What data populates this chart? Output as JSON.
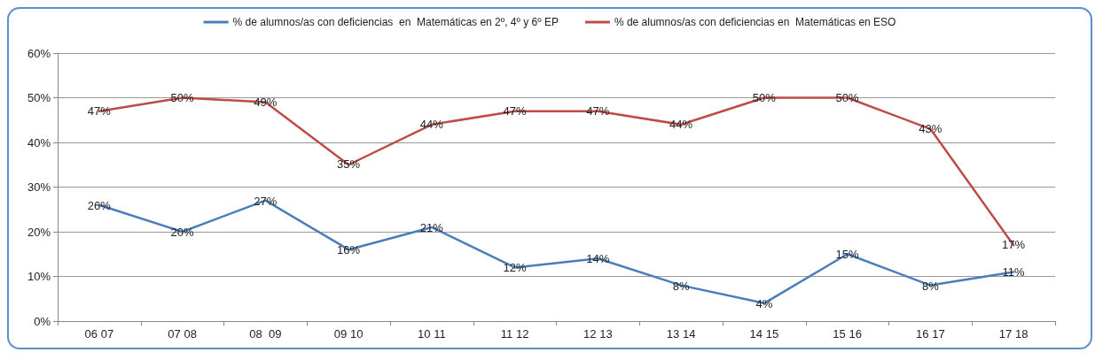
{
  "chart_data": {
    "type": "line",
    "categories": [
      "06 07",
      "07 08",
      "08  09",
      "09 10",
      "10 11",
      "11 12",
      "12 13",
      "13 14",
      "14 15",
      "15 16",
      "16 17",
      "17 18"
    ],
    "series": [
      {
        "name": "% de alumnos/as con deficiencias  en  Matemáticas en 2º, 4º y 6º EP",
        "color": "#4a7ebb",
        "values": [
          26,
          20,
          27,
          16,
          21,
          12,
          14,
          8,
          4,
          15,
          8,
          11
        ],
        "value_labels": [
          "26%",
          "20%",
          "27%",
          "16%",
          "21%",
          "12%",
          "14%",
          "8%",
          "4%",
          "15%",
          "8%",
          "11%"
        ]
      },
      {
        "name": "% de alumnos/as con deficiencias en  Matemáticas en ESO",
        "color": "#be4b48",
        "values": [
          47,
          50,
          49,
          35,
          44,
          47,
          47,
          44,
          50,
          50,
          43,
          17
        ],
        "value_labels": [
          "47%",
          "50%",
          "49%",
          "35%",
          "44%",
          "47%",
          "47%",
          "44%",
          "50%",
          "50%",
          "43%",
          "17%"
        ]
      }
    ],
    "ylim": [
      0,
      60
    ],
    "yticks": [
      {
        "value": 0,
        "label": "0%"
      },
      {
        "value": 10,
        "label": "10%"
      },
      {
        "value": 20,
        "label": "20%"
      },
      {
        "value": 30,
        "label": "30%"
      },
      {
        "value": 40,
        "label": "40%"
      },
      {
        "value": 50,
        "label": "50%"
      },
      {
        "value": 60,
        "label": "60%"
      }
    ],
    "grid": "y",
    "legend": "top",
    "marker": "none",
    "line_style": "solid"
  }
}
